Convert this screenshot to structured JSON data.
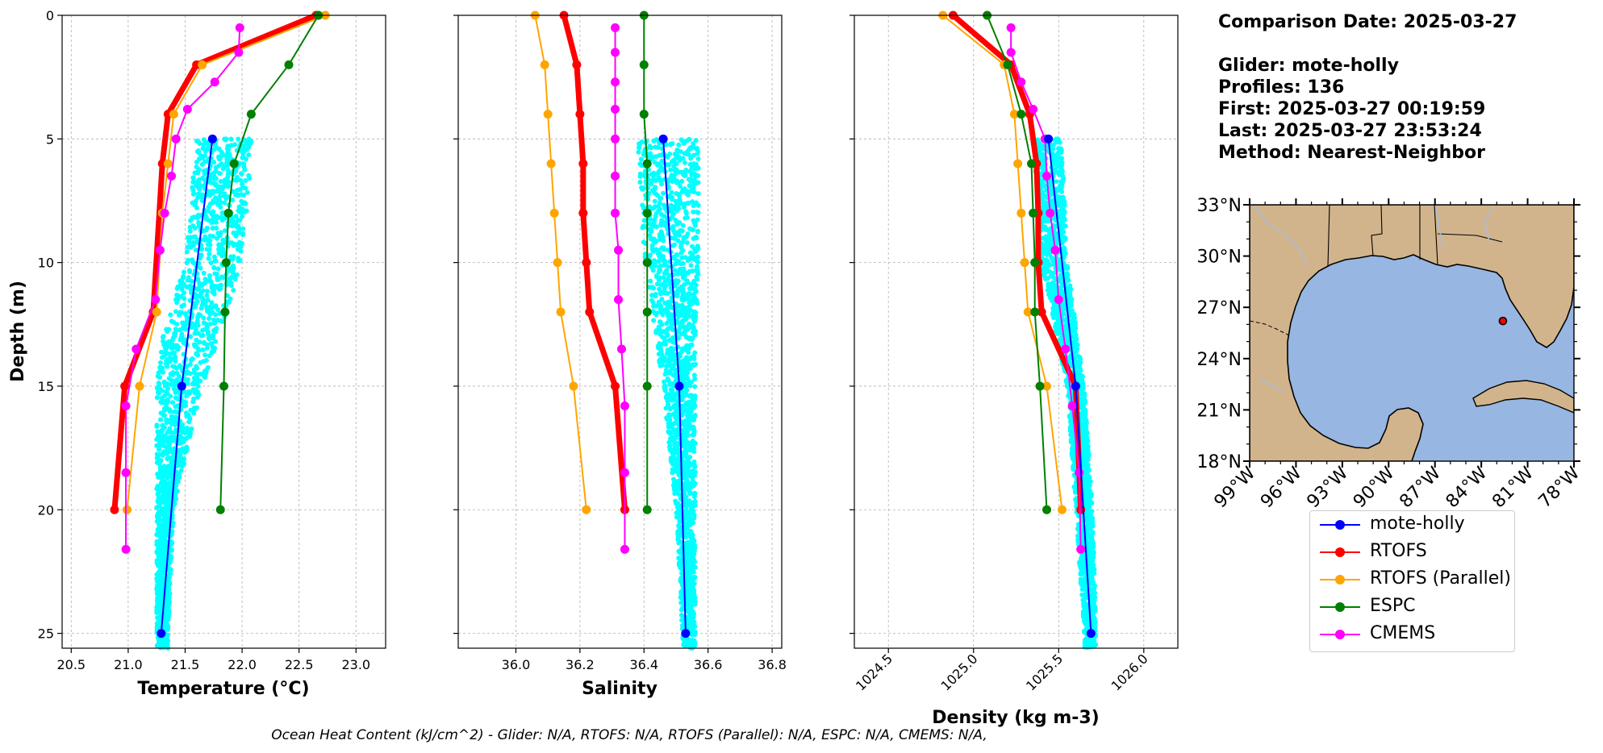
{
  "info": {
    "date_line": "Comparison Date: 2025-03-27",
    "glider_line": "Glider: mote-holly",
    "profiles_line": "Profiles: 136",
    "first_line": "First: 2025-03-27 00:19:59",
    "last_line": "Last: 2025-03-27 23:53:24",
    "method_line": "Method: Nearest-Neighbor"
  },
  "footer": "Ocean Heat Content (kJ/cm^2) - Glider: N/A,  RTOFS: N/A,  RTOFS (Parallel): N/A,  ESPC: N/A,  CMEMS: N/A,",
  "legend": [
    {
      "label": "mote-holly",
      "color": "#0000ff"
    },
    {
      "label": "RTOFS",
      "color": "#ff0000"
    },
    {
      "label": "RTOFS (Parallel)",
      "color": "#ffa500"
    },
    {
      "label": "ESPC",
      "color": "#008000"
    },
    {
      "label": "CMEMS",
      "color": "#ff00ff"
    }
  ],
  "colors": {
    "scatter": "#00ffff",
    "land": "#d2b48c",
    "ocean": "#97b6e1",
    "grid": "#b0b0b0"
  },
  "chart_data": [
    {
      "type": "line",
      "xlabel": "Temperature (°C)",
      "ylabel": "Depth (m)",
      "xlim": [
        20.42,
        23.26
      ],
      "ylim": [
        25.6,
        0
      ],
      "xticks": [
        20.5,
        21.0,
        21.5,
        22.0,
        22.5,
        23.0
      ],
      "xtick_labels": [
        "20.5",
        "21.0",
        "21.5",
        "22.0",
        "22.5",
        "23.0"
      ],
      "yticks": [
        0,
        5,
        10,
        15,
        20,
        25
      ],
      "ytick_labels": [
        "0",
        "5",
        "10",
        "15",
        "20",
        "25"
      ],
      "grid": true,
      "scatter_x_range": [
        [
          5,
          21.6,
          22.1
        ],
        [
          10,
          21.5,
          22.0
        ],
        [
          13,
          21.3,
          21.8
        ],
        [
          15,
          21.25,
          21.65
        ],
        [
          20,
          21.25,
          21.4
        ],
        [
          25,
          21.25,
          21.35
        ]
      ],
      "series": [
        {
          "name": "mote-holly",
          "x": [
            21.74,
            21.47,
            21.29
          ],
          "y": [
            5,
            15,
            25
          ]
        },
        {
          "name": "RTOFS",
          "x": [
            22.65,
            21.6,
            21.35,
            21.3,
            21.22,
            20.97,
            20.88
          ],
          "y": [
            0,
            2,
            4,
            6,
            12,
            15,
            20
          ]
        },
        {
          "name": "RTOFS (Parallel)",
          "x": [
            22.73,
            21.65,
            21.4,
            21.35,
            21.3,
            21.25,
            21.1,
            20.99
          ],
          "y": [
            0,
            2,
            4,
            6,
            8,
            12,
            15,
            20
          ]
        },
        {
          "name": "ESPC",
          "x": [
            22.67,
            22.41,
            22.08,
            21.93,
            21.88,
            21.86,
            21.85,
            21.84,
            21.81
          ],
          "y": [
            0,
            2,
            4,
            6,
            8,
            10,
            12,
            15,
            20
          ]
        },
        {
          "name": "CMEMS",
          "x": [
            21.98,
            21.97,
            21.76,
            21.52,
            21.42,
            21.38,
            21.32,
            21.28,
            21.24,
            21.07,
            20.98,
            20.98,
            20.98
          ],
          "y": [
            0.5,
            1.5,
            2.7,
            3.8,
            5,
            6.5,
            8,
            9.5,
            11.5,
            13.5,
            15.8,
            18.5,
            21.6
          ]
        }
      ]
    },
    {
      "type": "line",
      "xlabel": "Salinity",
      "xlim": [
        35.82,
        36.83
      ],
      "ylim": [
        25.6,
        0
      ],
      "xticks": [
        36.0,
        36.2,
        36.4,
        36.6,
        36.8
      ],
      "xtick_labels": [
        "36.0",
        "36.2",
        "36.4",
        "36.6",
        "36.8"
      ],
      "yticks": [
        0,
        5,
        10,
        15,
        20,
        25
      ],
      "grid": true,
      "scatter_x_range": [
        [
          5,
          36.38,
          36.57
        ],
        [
          10,
          36.4,
          36.57
        ],
        [
          15,
          36.46,
          36.56
        ],
        [
          20,
          36.5,
          36.56
        ],
        [
          25,
          36.52,
          36.56
        ]
      ],
      "series": [
        {
          "name": "mote-holly",
          "x": [
            36.46,
            36.51,
            36.53
          ],
          "y": [
            5,
            15,
            25
          ]
        },
        {
          "name": "RTOFS",
          "x": [
            36.15,
            36.19,
            36.2,
            36.21,
            36.21,
            36.22,
            36.23,
            36.31,
            36.34
          ],
          "y": [
            0,
            2,
            4,
            6,
            8,
            10,
            12,
            15,
            20
          ]
        },
        {
          "name": "RTOFS (Parallel)",
          "x": [
            36.06,
            36.09,
            36.1,
            36.11,
            36.12,
            36.13,
            36.14,
            36.18,
            36.22
          ],
          "y": [
            0,
            2,
            4,
            6,
            8,
            10,
            12,
            15,
            20
          ]
        },
        {
          "name": "ESPC",
          "x": [
            36.4,
            36.4,
            36.4,
            36.41,
            36.41,
            36.41,
            36.41,
            36.41,
            36.41
          ],
          "y": [
            0,
            2,
            4,
            6,
            8,
            10,
            12,
            15,
            20
          ]
        },
        {
          "name": "CMEMS",
          "x": [
            36.31,
            36.31,
            36.31,
            36.31,
            36.31,
            36.31,
            36.31,
            36.32,
            36.32,
            36.33,
            36.34,
            36.34,
            36.34
          ],
          "y": [
            0.5,
            1.5,
            2.7,
            3.8,
            5,
            6.5,
            8,
            9.5,
            11.5,
            13.5,
            15.8,
            18.5,
            21.6
          ]
        }
      ]
    },
    {
      "type": "line",
      "xlabel": "Density (kg m-3)",
      "xlim": [
        1024.3,
        1026.2
      ],
      "ylim": [
        25.6,
        0
      ],
      "xticks": [
        1024.5,
        1025.0,
        1025.5,
        1026.0
      ],
      "xtick_labels": [
        "1024.5",
        "1025.0",
        "1025.5",
        "1026.0"
      ],
      "yticks": [
        0,
        5,
        10,
        15,
        20,
        25
      ],
      "grid": true,
      "scatter_x_range": [
        [
          5,
          1025.35,
          1025.52
        ],
        [
          10,
          1025.4,
          1025.55
        ],
        [
          15,
          1025.55,
          1025.65
        ],
        [
          20,
          1025.6,
          1025.7
        ],
        [
          25,
          1025.65,
          1025.72
        ]
      ],
      "series": [
        {
          "name": "mote-holly",
          "x": [
            1025.44,
            1025.6,
            1025.69
          ],
          "y": [
            5,
            15,
            25
          ]
        },
        {
          "name": "RTOFS",
          "x": [
            1024.88,
            1025.22,
            1025.33,
            1025.37,
            1025.38,
            1025.38,
            1025.4,
            1025.6,
            1025.63
          ],
          "y": [
            0,
            2,
            4,
            6,
            8,
            10,
            12,
            15,
            20
          ]
        },
        {
          "name": "RTOFS (Parallel)",
          "x": [
            1024.82,
            1025.18,
            1025.24,
            1025.26,
            1025.28,
            1025.3,
            1025.32,
            1025.43,
            1025.52
          ],
          "y": [
            0,
            2,
            4,
            6,
            8,
            10,
            12,
            15,
            20
          ]
        },
        {
          "name": "ESPC",
          "x": [
            1025.08,
            1025.2,
            1025.28,
            1025.34,
            1025.35,
            1025.36,
            1025.36,
            1025.39,
            1025.43
          ],
          "y": [
            0,
            2,
            4,
            6,
            8,
            10,
            12,
            15,
            20
          ]
        },
        {
          "name": "CMEMS",
          "x": [
            1025.22,
            1025.22,
            1025.28,
            1025.35,
            1025.42,
            1025.43,
            1025.45,
            1025.48,
            1025.5,
            1025.54,
            1025.58,
            1025.62,
            1025.63
          ],
          "y": [
            0.5,
            1.5,
            2.7,
            3.8,
            5,
            6.5,
            8,
            9.5,
            11.5,
            13.5,
            15.8,
            18.5,
            21.6
          ]
        }
      ]
    },
    {
      "type": "map",
      "lat_ticks": [
        "33°N",
        "30°N",
        "27°N",
        "24°N",
        "21°N",
        "18°N"
      ],
      "lon_ticks": [
        "99°W",
        "96°W",
        "93°W",
        "90°W",
        "87°W",
        "84°W",
        "81°W",
        "78°W"
      ],
      "lat_range": [
        18,
        33
      ],
      "lon_range": [
        -99,
        -78
      ],
      "glider_position": {
        "lon": -82.6,
        "lat": 26.2
      }
    }
  ]
}
